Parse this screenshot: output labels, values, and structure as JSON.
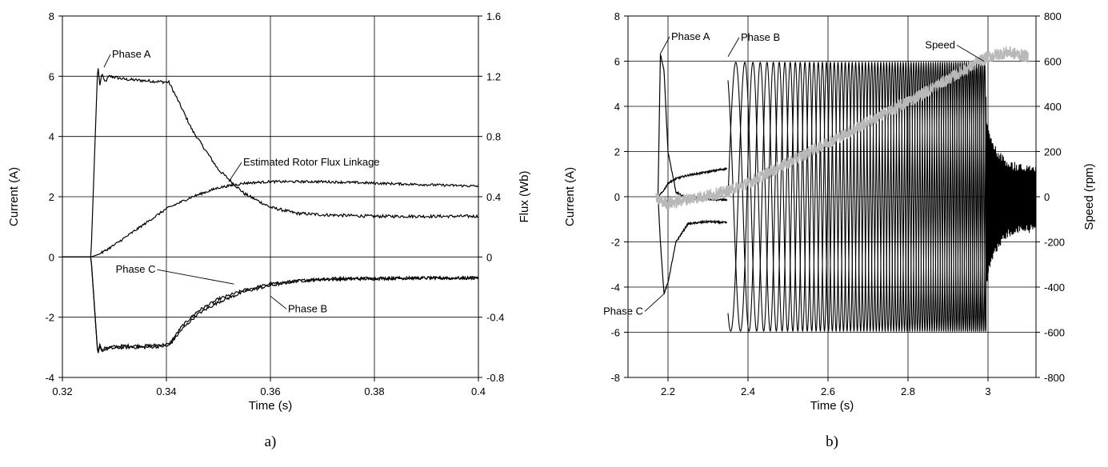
{
  "chart_data": [
    {
      "type": "line",
      "caption": "a)",
      "xlabel": "Time (s)",
      "ylabel": "Current (A)",
      "y2label": "Flux (Wb)",
      "xlim": [
        0.32,
        0.4
      ],
      "ylim": [
        -4,
        8
      ],
      "y2lim": [
        -0.8,
        1.6
      ],
      "xticks": [
        0.32,
        0.34,
        0.36,
        0.38,
        0.4
      ],
      "xtick_labels": [
        "0.32",
        "0.34",
        "0.36",
        "0.38",
        "0.4"
      ],
      "yticks": [
        -4,
        -2,
        0,
        2,
        4,
        6,
        8
      ],
      "ytick_labels": [
        "-4",
        "-2",
        "0",
        "2",
        "4",
        "6",
        "8"
      ],
      "y2ticks": [
        -0.8,
        -0.4,
        0,
        0.4,
        0.8,
        1.2,
        1.6
      ],
      "y2tick_labels": [
        "-0.8",
        "-0.4",
        "0",
        "0.4",
        "0.8",
        "1.2",
        "1.6"
      ],
      "grid": true,
      "series": [
        {
          "name": "Phase A",
          "axis": "left",
          "color": "#000000",
          "x": [
            0.32,
            0.3255,
            0.3268,
            0.3272,
            0.3276,
            0.3282,
            0.329,
            0.332,
            0.336,
            0.3405,
            0.3425,
            0.345,
            0.35,
            0.355,
            0.36,
            0.365,
            0.37,
            0.38,
            0.39,
            0.4
          ],
          "y": [
            0,
            0,
            6.4,
            5.7,
            6.1,
            5.8,
            6.0,
            5.9,
            5.85,
            5.8,
            5.1,
            4.2,
            2.9,
            2.1,
            1.65,
            1.45,
            1.4,
            1.35,
            1.35,
            1.35
          ]
        },
        {
          "name": "Phase B",
          "axis": "left",
          "color": "#000000",
          "x": [
            0.32,
            0.3255,
            0.3268,
            0.3272,
            0.3276,
            0.3285,
            0.332,
            0.336,
            0.3405,
            0.343,
            0.346,
            0.35,
            0.355,
            0.36,
            0.365,
            0.37,
            0.38,
            0.39,
            0.4
          ],
          "y": [
            0,
            0,
            -3.2,
            -2.9,
            -3.1,
            -3.0,
            -2.95,
            -2.95,
            -2.9,
            -2.3,
            -1.8,
            -1.4,
            -1.1,
            -0.9,
            -0.8,
            -0.72,
            -0.7,
            -0.7,
            -0.7
          ]
        },
        {
          "name": "Phase C",
          "axis": "left",
          "color": "#000000",
          "x": [
            0.32,
            0.3255,
            0.3268,
            0.3272,
            0.3276,
            0.3285,
            0.332,
            0.336,
            0.3405,
            0.343,
            0.346,
            0.35,
            0.355,
            0.36,
            0.365,
            0.37,
            0.38,
            0.39,
            0.4
          ],
          "y": [
            0,
            0,
            -3.25,
            -2.95,
            -3.15,
            -3.05,
            -3.0,
            -3.0,
            -2.95,
            -2.4,
            -1.9,
            -1.5,
            -1.15,
            -0.95,
            -0.8,
            -0.75,
            -0.72,
            -0.7,
            -0.7
          ]
        },
        {
          "name": "Estimated Rotor Flux Linkage",
          "axis": "right",
          "color": "#000000",
          "x": [
            0.3255,
            0.3272,
            0.33,
            0.335,
            0.34,
            0.345,
            0.35,
            0.355,
            0.36,
            0.37,
            0.38,
            0.39,
            0.4
          ],
          "y": [
            0,
            0.02,
            0.08,
            0.2,
            0.32,
            0.4,
            0.46,
            0.49,
            0.5,
            0.5,
            0.49,
            0.48,
            0.47
          ]
        }
      ],
      "annotations": [
        {
          "text": "Phase A",
          "x": 0.328,
          "y": 6.3
        },
        {
          "text": "Estimated Rotor Flux Linkage",
          "x": 0.352,
          "y": 2.5
        },
        {
          "text": "Phase C",
          "x": 0.353,
          "y": -0.9
        },
        {
          "text": "Phase B",
          "x": 0.36,
          "y": -1.3
        }
      ]
    },
    {
      "type": "line",
      "caption": "b)",
      "xlabel": "Time (s)",
      "ylabel": "Current (A)",
      "y2label": "Speed (rpm)",
      "xlim": [
        2.1,
        3.12
      ],
      "ylim": [
        -8,
        8
      ],
      "y2lim": [
        -800,
        800
      ],
      "xticks": [
        2.2,
        2.4,
        2.6,
        2.8,
        3
      ],
      "xtick_labels": [
        "2.2",
        "2.4",
        "2.6",
        "2.8",
        "3"
      ],
      "yticks": [
        -8,
        -6,
        -4,
        -2,
        0,
        2,
        4,
        6,
        8
      ],
      "ytick_labels": [
        "-8",
        "-6",
        "-4",
        "-2",
        "0",
        "2",
        "4",
        "6",
        "8"
      ],
      "y2ticks": [
        -800,
        -600,
        -400,
        -200,
        0,
        200,
        400,
        600,
        800
      ],
      "y2tick_labels": [
        "-800",
        "-600",
        "-400",
        "-200",
        "0",
        "200",
        "400",
        "600",
        "800"
      ],
      "grid": true,
      "series": [
        {
          "name": "Phase A",
          "axis": "left",
          "color": "#000000",
          "x": [
            2.175,
            2.181,
            2.19,
            2.2,
            2.22,
            2.25,
            2.3,
            2.347
          ],
          "y": [
            0,
            6.3,
            5.6,
            2.0,
            0.2,
            -0.1,
            -0.1,
            -0.15
          ]
        },
        {
          "name": "Phase B",
          "axis": "left",
          "color": "#000000",
          "x": [
            2.175,
            2.181,
            2.19,
            2.2,
            2.22,
            2.25,
            2.3,
            2.347
          ],
          "y": [
            0,
            0.1,
            0.3,
            0.6,
            0.8,
            0.95,
            1.1,
            1.25
          ]
        },
        {
          "name": "Phase C",
          "axis": "left",
          "color": "#000000",
          "x": [
            2.175,
            2.181,
            2.19,
            2.2,
            2.22,
            2.25,
            2.3,
            2.347
          ],
          "y": [
            0,
            -2.0,
            -4.3,
            -3.8,
            -2.0,
            -1.2,
            -1.1,
            -1.15
          ]
        },
        {
          "name": "Speed",
          "axis": "right",
          "color": "#b8b8b8",
          "x": [
            2.17,
            2.2,
            2.25,
            2.3,
            2.35,
            2.4,
            2.5,
            2.6,
            2.7,
            2.8,
            2.9,
            2.95,
            3.0,
            3.05,
            3.1
          ],
          "y": [
            -10,
            -30,
            -10,
            5,
            25,
            60,
            150,
            240,
            330,
            420,
            520,
            570,
            620,
            640,
            620
          ]
        }
      ],
      "oscillation": {
        "start": 2.35,
        "end": 2.995,
        "amplitude": 5.95,
        "freq_start": 12,
        "freq_end": 68
      },
      "annotations": [
        {
          "text": "Phase A",
          "x": 2.18,
          "y": 6.3
        },
        {
          "text": "Phase B",
          "x": 2.35,
          "y": 6.2
        },
        {
          "text": "Phase C",
          "x": 2.19,
          "y": -4.3
        },
        {
          "text": "Speed",
          "x": 2.99,
          "y": 600
        }
      ]
    }
  ]
}
